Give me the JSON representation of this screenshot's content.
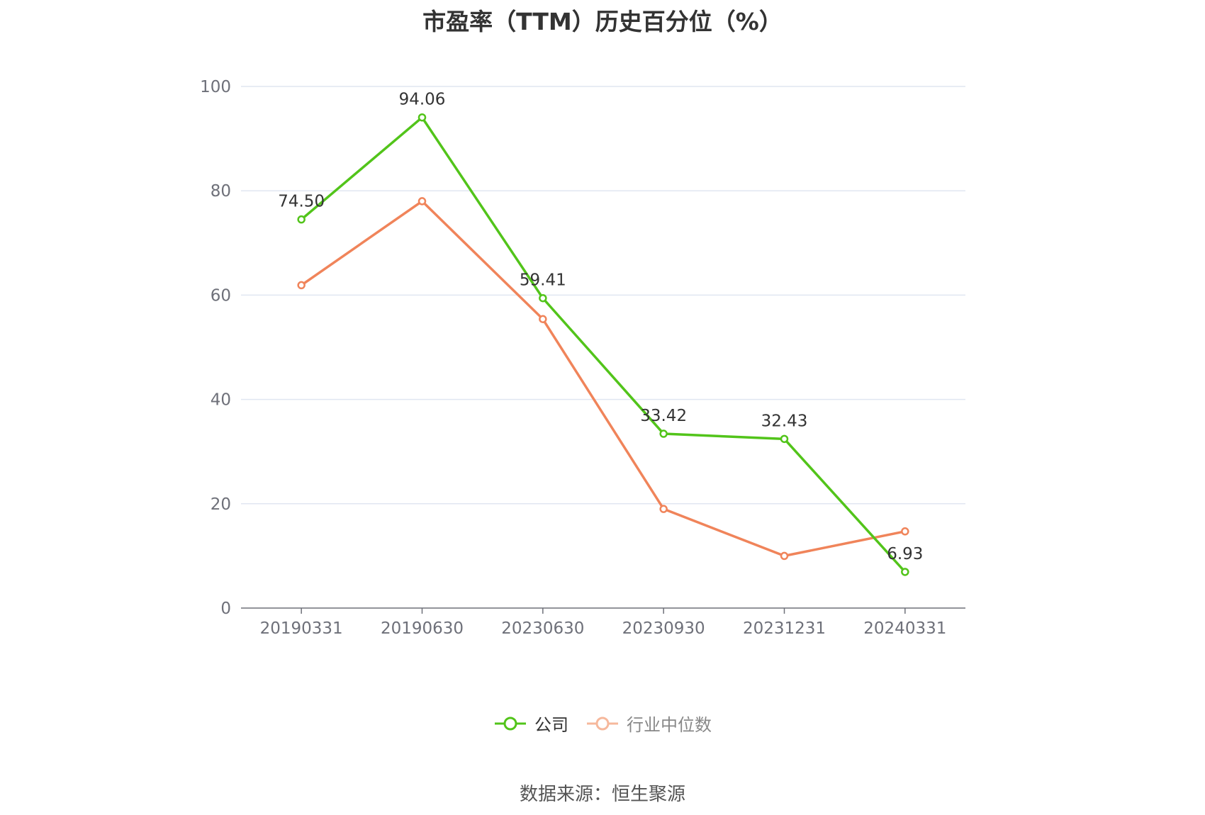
{
  "title": "市盈率（TTM）历史百分位（%）",
  "source": "数据来源：恒生聚源",
  "chart_data": {
    "type": "line",
    "title": "市盈率（TTM）历史百分位（%）",
    "categories": [
      "20190331",
      "20190630",
      "20230630",
      "20230930",
      "20231231",
      "20240331"
    ],
    "ylim": [
      0,
      100
    ],
    "yticks": [
      0,
      20,
      40,
      60,
      80,
      100
    ],
    "grid": true,
    "legend_position": "bottom",
    "series": [
      {
        "name": "公司",
        "color": "#52c41a",
        "values": [
          74.5,
          94.06,
          59.41,
          33.42,
          32.43,
          6.93
        ],
        "show_labels": true
      },
      {
        "name": "行业中位数",
        "color": "#f0845a",
        "values": [
          61.9,
          78.0,
          55.4,
          19.0,
          10.0,
          14.7
        ],
        "show_labels": false
      }
    ]
  }
}
